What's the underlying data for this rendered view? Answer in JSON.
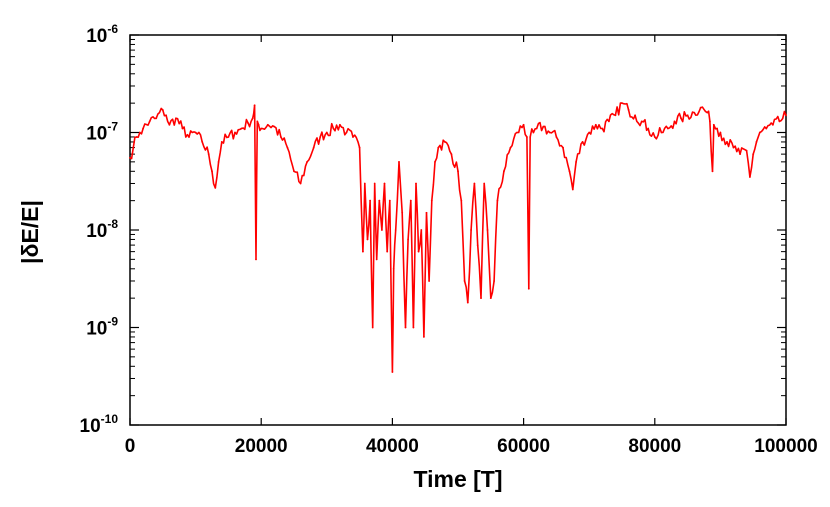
{
  "chart_data": {
    "type": "line",
    "title": "",
    "xlabel": "Time [T]",
    "ylabel": "|δE/E|",
    "xlim": [
      0,
      100000
    ],
    "ylim": [
      1e-10,
      1e-06
    ],
    "yscale": "log",
    "grid": false,
    "legend": "none",
    "x_ticks": [
      0,
      20000,
      40000,
      60000,
      80000,
      100000
    ],
    "x_tick_labels": [
      "0",
      "20000",
      "40000",
      "60000",
      "80000",
      "100000"
    ],
    "y_ticks": [
      1e-10,
      1e-09,
      1e-08,
      1e-07,
      1e-06
    ],
    "y_tick_labels": [
      {
        "base": "10",
        "exp": "-10"
      },
      {
        "base": "10",
        "exp": "-9"
      },
      {
        "base": "10",
        "exp": "-8"
      },
      {
        "base": "10",
        "exp": "-7"
      },
      {
        "base": "10",
        "exp": "-6"
      }
    ],
    "series": [
      {
        "color": "#ff0000",
        "x": [
          0,
          500,
          1000,
          1500,
          2000,
          3000,
          4000,
          5000,
          5500,
          6000,
          7000,
          8000,
          9000,
          10000,
          11000,
          12000,
          12500,
          13000,
          13500,
          14000,
          15000,
          16000,
          17000,
          18000,
          18700,
          19000,
          19200,
          19400,
          19600,
          20000,
          21000,
          22000,
          23000,
          24000,
          25000,
          26000,
          27000,
          28000,
          29000,
          30000,
          31000,
          32000,
          33000,
          34000,
          35000,
          35500,
          35800,
          36200,
          36600,
          37000,
          37300,
          37600,
          38000,
          38400,
          38800,
          39200,
          39600,
          40000,
          40200,
          40500,
          41000,
          41500,
          42000,
          42400,
          42800,
          43200,
          43600,
          44000,
          44400,
          44800,
          45200,
          45600,
          46000,
          46500,
          47000,
          48000,
          49000,
          50000,
          50500,
          51000,
          51500,
          52000,
          52500,
          53000,
          53500,
          54000,
          54500,
          55000,
          55500,
          56000,
          57000,
          58000,
          59000,
          60000,
          60500,
          60800,
          61000,
          61500,
          62000,
          63000,
          64000,
          65000,
          66000,
          67000,
          67500,
          68000,
          69000,
          70000,
          71000,
          72000,
          73000,
          74000,
          75000,
          76000,
          77000,
          78000,
          79000,
          80000,
          81000,
          82000,
          83000,
          84000,
          85000,
          86000,
          87000,
          88000,
          88400,
          88800,
          89000,
          89500,
          90000,
          91000,
          92000,
          93000,
          94000,
          94500,
          95000,
          95500,
          96000,
          97000,
          98000,
          99000,
          100000
        ],
        "y": [
          5.5e-08,
          7e-08,
          9e-08,
          1e-07,
          1.1e-07,
          1.3e-07,
          1.4e-07,
          1.7e-07,
          1.5e-07,
          1.2e-07,
          1.4e-07,
          1.1e-07,
          9e-08,
          1e-07,
          8e-08,
          6e-08,
          4e-08,
          2.7e-08,
          5e-08,
          8e-08,
          9e-08,
          1e-07,
          1.1e-07,
          1.25e-07,
          1.4e-07,
          1.9e-07,
          5e-09,
          1.3e-07,
          1.2e-07,
          1.1e-07,
          1.2e-07,
          1.15e-07,
          9e-08,
          7e-08,
          4e-08,
          3e-08,
          5e-08,
          7e-08,
          9e-08,
          1e-07,
          1.1e-07,
          1.2e-07,
          1e-07,
          9e-08,
          7e-08,
          6e-09,
          3e-08,
          8e-09,
          2e-08,
          1e-09,
          3e-08,
          5e-09,
          2e-08,
          1e-08,
          3e-08,
          6e-09,
          2e-08,
          3.5e-10,
          4e-09,
          1e-08,
          5e-08,
          1.5e-08,
          1e-09,
          8e-09,
          2e-08,
          1e-09,
          3e-08,
          6e-09,
          1e-08,
          8e-10,
          1.5e-08,
          3e-09,
          2e-08,
          5e-08,
          7e-08,
          8e-08,
          6e-08,
          4e-08,
          2e-08,
          3e-09,
          1.8e-09,
          1e-08,
          3e-08,
          7e-09,
          2e-09,
          3e-08,
          1e-08,
          2e-09,
          3e-09,
          2e-08,
          4e-08,
          7e-08,
          1e-07,
          1.2e-07,
          9e-08,
          2.5e-09,
          9e-08,
          1e-07,
          1.1e-07,
          1.15e-07,
          1e-07,
          9e-08,
          7e-08,
          4e-08,
          2.6e-08,
          5e-08,
          8e-08,
          1e-07,
          1.2e-07,
          1.1e-07,
          1.3e-07,
          1.5e-07,
          2e-07,
          1.7e-07,
          1.5e-07,
          1.3e-07,
          1.1e-07,
          9e-08,
          1e-07,
          1.1e-07,
          1.3e-07,
          1.4e-07,
          1.5e-07,
          1.6e-07,
          1.8e-07,
          1.6e-07,
          1.3e-07,
          4e-08,
          1.2e-07,
          1.1e-07,
          1e-07,
          8e-08,
          7e-08,
          6e-08,
          6.5e-08,
          3.5e-08,
          6e-08,
          8e-08,
          1e-07,
          1.1e-07,
          1.2e-07,
          1.3e-07,
          1.5e-07
        ]
      }
    ]
  }
}
